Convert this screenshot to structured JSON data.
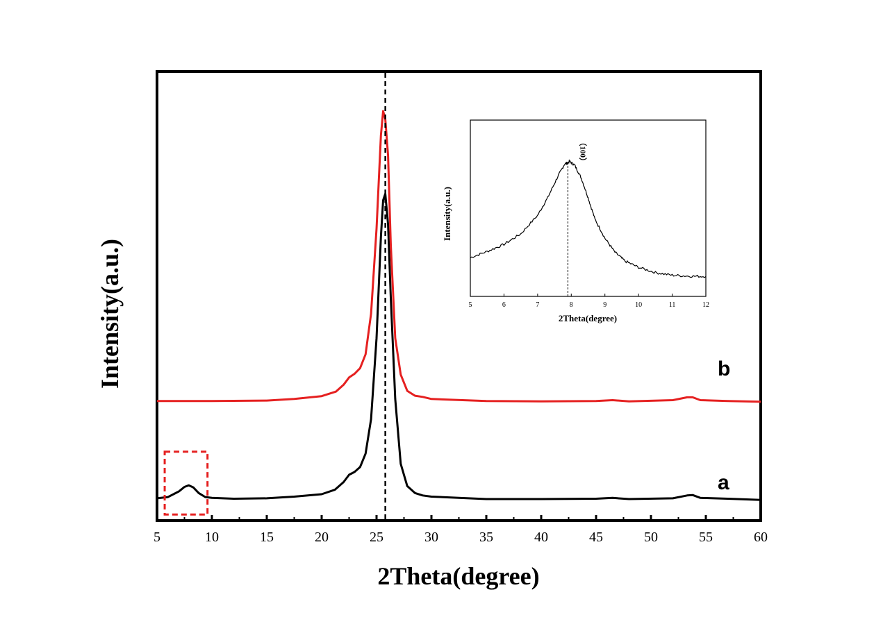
{
  "chart_data": {
    "type": "line",
    "xlabel": "2Theta(degree)",
    "ylabel": "Intensity(a.u.)",
    "xlim": [
      5,
      60
    ],
    "ylim": [
      0,
      100
    ],
    "xticks": [
      "5",
      "10",
      "15",
      "20",
      "25",
      "30",
      "35",
      "40",
      "45",
      "50",
      "55",
      "60"
    ],
    "reference_line_x": 25.8,
    "highlight_region": {
      "x_range": [
        5.7,
        9.6
      ],
      "y_range": [
        1.5,
        17
      ],
      "color": "#e52020"
    },
    "series": [
      {
        "name": "a",
        "color": "#000000",
        "points": [
          [
            5,
            5.5
          ],
          [
            6,
            5.8
          ],
          [
            7,
            7.2
          ],
          [
            7.5,
            8.3
          ],
          [
            7.9,
            8.7
          ],
          [
            8.3,
            8.2
          ],
          [
            8.8,
            6.8
          ],
          [
            9.4,
            5.8
          ],
          [
            10,
            5.6
          ],
          [
            12,
            5.4
          ],
          [
            15,
            5.5
          ],
          [
            17.5,
            5.9
          ],
          [
            20,
            6.5
          ],
          [
            21.2,
            7.6
          ],
          [
            22,
            9.5
          ],
          [
            22.5,
            11.3
          ],
          [
            23,
            12
          ],
          [
            23.5,
            13.2
          ],
          [
            24,
            16.5
          ],
          [
            24.5,
            25
          ],
          [
            25,
            45
          ],
          [
            25.4,
            70
          ],
          [
            25.6,
            79
          ],
          [
            25.8,
            80.6
          ],
          [
            26.05,
            73
          ],
          [
            26.3,
            55
          ],
          [
            26.7,
            30
          ],
          [
            27.2,
            14
          ],
          [
            27.8,
            8.5
          ],
          [
            28.5,
            6.8
          ],
          [
            29.2,
            6.2
          ],
          [
            30,
            5.9
          ],
          [
            35,
            5.3
          ],
          [
            40,
            5.3
          ],
          [
            45,
            5.4
          ],
          [
            46.5,
            5.6
          ],
          [
            48,
            5.3
          ],
          [
            52,
            5.5
          ],
          [
            53.3,
            6.2
          ],
          [
            53.8,
            6.3
          ],
          [
            54.5,
            5.6
          ],
          [
            57,
            5.4
          ],
          [
            60,
            5.1
          ]
        ]
      },
      {
        "name": "b",
        "color": "#e52020",
        "points": [
          [
            5,
            29.5
          ],
          [
            10,
            29.5
          ],
          [
            15,
            29.6
          ],
          [
            17.5,
            30
          ],
          [
            20,
            30.7
          ],
          [
            21.3,
            31.8
          ],
          [
            22,
            33.5
          ],
          [
            22.5,
            35.3
          ],
          [
            23,
            36.2
          ],
          [
            23.5,
            37.6
          ],
          [
            24,
            41
          ],
          [
            24.5,
            51
          ],
          [
            25,
            72
          ],
          [
            25.4,
            95
          ],
          [
            25.6,
            101
          ],
          [
            25.8,
            99
          ],
          [
            26.05,
            90
          ],
          [
            26.3,
            68
          ],
          [
            26.7,
            45
          ],
          [
            27.2,
            36
          ],
          [
            27.8,
            32
          ],
          [
            28.5,
            30.8
          ],
          [
            29.2,
            30.5
          ],
          [
            30,
            30
          ],
          [
            35,
            29.5
          ],
          [
            40,
            29.4
          ],
          [
            45,
            29.5
          ],
          [
            46.5,
            29.7
          ],
          [
            48,
            29.4
          ],
          [
            52,
            29.7
          ],
          [
            53.3,
            30.4
          ],
          [
            53.8,
            30.4
          ],
          [
            54.5,
            29.7
          ],
          [
            57,
            29.5
          ],
          [
            60,
            29.3
          ]
        ]
      }
    ],
    "series_labels": [
      "a",
      "b"
    ],
    "inset": {
      "type": "line",
      "xlabel": "2Theta(degree)",
      "ylabel": "Intensity(a.u.)",
      "xlim": [
        5,
        12
      ],
      "ylim": [
        0,
        100
      ],
      "xticks": [
        "5",
        "6",
        "7",
        "8",
        "9",
        "10",
        "11",
        "12"
      ],
      "reference_line_x": 7.9,
      "peak_label": "（100）",
      "points": [
        [
          5,
          22
        ],
        [
          5.5,
          25.5
        ],
        [
          6,
          29.5
        ],
        [
          6.5,
          35.5
        ],
        [
          7,
          46
        ],
        [
          7.3,
          56
        ],
        [
          7.6,
          68
        ],
        [
          7.8,
          75
        ],
        [
          7.95,
          76.5
        ],
        [
          8.1,
          74.5
        ],
        [
          8.3,
          67
        ],
        [
          8.5,
          56
        ],
        [
          8.7,
          44
        ],
        [
          9,
          33
        ],
        [
          9.3,
          25
        ],
        [
          9.6,
          20
        ],
        [
          10,
          16.5
        ],
        [
          10.5,
          13.5
        ],
        [
          11,
          12
        ],
        [
          11.5,
          11.5
        ],
        [
          12,
          11.3
        ]
      ]
    }
  }
}
